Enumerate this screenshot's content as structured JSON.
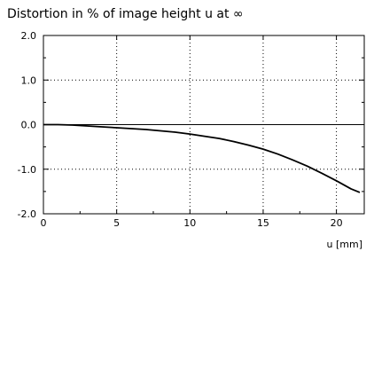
{
  "chart_data": {
    "type": "line",
    "title": "Distortion in % of image height u at ∞",
    "xlabel": "u [mm]",
    "ylabel": "",
    "xlim": [
      0,
      21.9
    ],
    "ylim": [
      -2.0,
      2.0
    ],
    "x_ticks": [
      0,
      5,
      10,
      15,
      20
    ],
    "x_tick_labels": [
      "0",
      "5",
      "10",
      "15",
      "20"
    ],
    "y_ticks": [
      2.0,
      1.0,
      0.0,
      -1.0,
      -2.0
    ],
    "y_tick_labels": [
      "2.0",
      "1.0",
      "0.0",
      "-1.0",
      "-2.0"
    ],
    "grid": true,
    "grid_style": "dotted",
    "series": [
      {
        "color": "#000000",
        "x": [
          0,
          1,
          2,
          3,
          4,
          5,
          6,
          7,
          8,
          9,
          10,
          11,
          12,
          13,
          14,
          15,
          16,
          17,
          18,
          19,
          20,
          21,
          21.6
        ],
        "y": [
          0,
          0,
          -0.01,
          -0.03,
          -0.05,
          -0.07,
          -0.09,
          -0.11,
          -0.14,
          -0.17,
          -0.21,
          -0.26,
          -0.31,
          -0.38,
          -0.46,
          -0.55,
          -0.66,
          -0.79,
          -0.93,
          -1.09,
          -1.26,
          -1.44,
          -1.52
        ]
      }
    ]
  }
}
